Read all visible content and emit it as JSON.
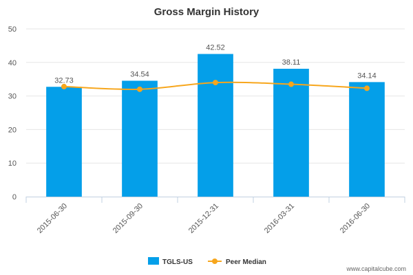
{
  "chart_data": {
    "type": "bar",
    "title": "Gross Margin History",
    "categories": [
      "2015-06-30",
      "2015-09-30",
      "2015-12-31",
      "2016-03-31",
      "2016-06-30"
    ],
    "series": [
      {
        "name": "TGLS-US",
        "kind": "bar",
        "color": "#049fe9",
        "values": [
          32.73,
          34.54,
          42.52,
          38.11,
          34.14
        ],
        "labels": [
          "32.73",
          "34.54",
          "42.52",
          "38.11",
          "34.14"
        ]
      },
      {
        "name": "Peer Median",
        "kind": "line",
        "color": "#f7a61c",
        "values": [
          32.8,
          32.0,
          34.0,
          33.5,
          32.3
        ]
      }
    ],
    "ylim": [
      0,
      50
    ],
    "yticks": [
      0,
      10,
      20,
      30,
      40,
      50
    ],
    "grid": true,
    "legend": "bottom-center"
  },
  "credit": "www.capitalcube.com"
}
